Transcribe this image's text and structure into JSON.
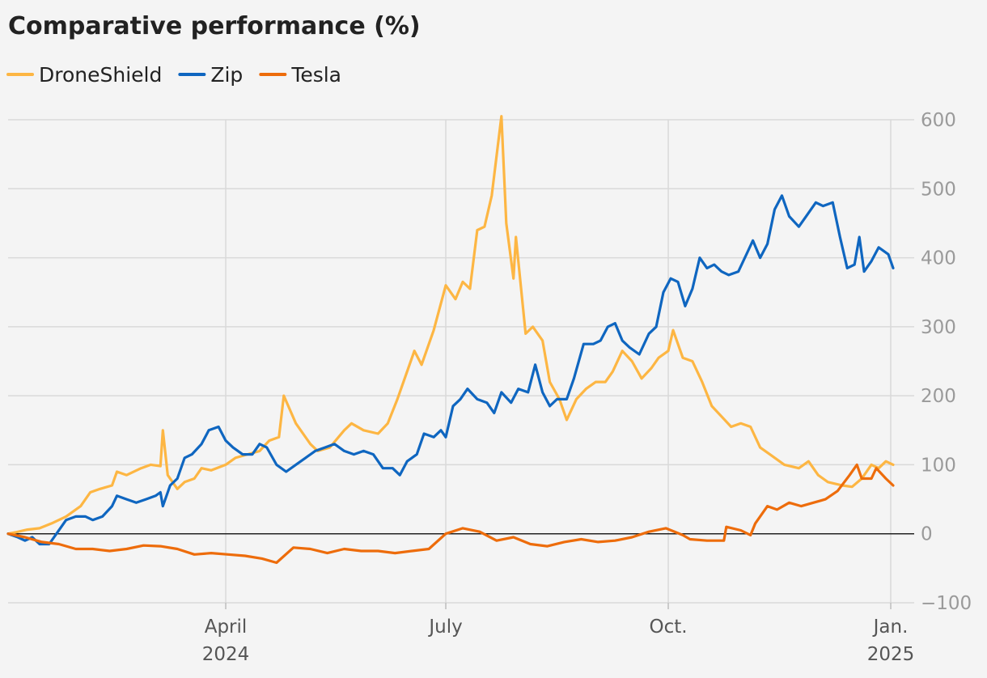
{
  "chart_data": {
    "type": "line",
    "title": "Comparative performance (%)",
    "legend_position": "top-left",
    "grid": true,
    "ylim": [
      -100,
      600
    ],
    "yticks": [
      600,
      500,
      400,
      300,
      200,
      100,
      0,
      -100
    ],
    "ytick_labels": [
      "600",
      "500",
      "400",
      "300",
      "200",
      "100",
      "0",
      "−100"
    ],
    "xlim": [
      "2024-01-02",
      "2025-01-03"
    ],
    "xticks": [
      {
        "date": "2024-04-01",
        "label": "April",
        "sublabel": "2024"
      },
      {
        "date": "2024-07-01",
        "label": "July",
        "sublabel": ""
      },
      {
        "date": "2024-10-01",
        "label": "Oct.",
        "sublabel": ""
      },
      {
        "date": "2025-01-01",
        "label": "Jan.",
        "sublabel": "2025"
      }
    ],
    "series": [
      {
        "name": "DroneShield",
        "color": "#fdb643",
        "points": [
          [
            "2024-01-02",
            0
          ],
          [
            "2024-01-05",
            2
          ],
          [
            "2024-01-10",
            6
          ],
          [
            "2024-01-15",
            8
          ],
          [
            "2024-01-20",
            15
          ],
          [
            "2024-01-26",
            25
          ],
          [
            "2024-02-01",
            40
          ],
          [
            "2024-02-05",
            60
          ],
          [
            "2024-02-09",
            65
          ],
          [
            "2024-02-14",
            70
          ],
          [
            "2024-02-16",
            90
          ],
          [
            "2024-02-20",
            85
          ],
          [
            "2024-02-26",
            95
          ],
          [
            "2024-03-01",
            100
          ],
          [
            "2024-03-05",
            98
          ],
          [
            "2024-03-06",
            150
          ],
          [
            "2024-03-08",
            85
          ],
          [
            "2024-03-12",
            65
          ],
          [
            "2024-03-15",
            75
          ],
          [
            "2024-03-19",
            80
          ],
          [
            "2024-03-22",
            95
          ],
          [
            "2024-03-26",
            92
          ],
          [
            "2024-04-01",
            100
          ],
          [
            "2024-04-05",
            110
          ],
          [
            "2024-04-10",
            115
          ],
          [
            "2024-04-15",
            120
          ],
          [
            "2024-04-19",
            135
          ],
          [
            "2024-04-23",
            140
          ],
          [
            "2024-04-25",
            200
          ],
          [
            "2024-04-30",
            160
          ],
          [
            "2024-05-06",
            130
          ],
          [
            "2024-05-09",
            120
          ],
          [
            "2024-05-14",
            125
          ],
          [
            "2024-05-20",
            150
          ],
          [
            "2024-05-23",
            160
          ],
          [
            "2024-05-28",
            150
          ],
          [
            "2024-06-03",
            145
          ],
          [
            "2024-06-07",
            160
          ],
          [
            "2024-06-11",
            195
          ],
          [
            "2024-06-14",
            225
          ],
          [
            "2024-06-18",
            265
          ],
          [
            "2024-06-21",
            245
          ],
          [
            "2024-06-26",
            295
          ],
          [
            "2024-07-01",
            360
          ],
          [
            "2024-07-05",
            340
          ],
          [
            "2024-07-08",
            365
          ],
          [
            "2024-07-11",
            355
          ],
          [
            "2024-07-14",
            440
          ],
          [
            "2024-07-17",
            445
          ],
          [
            "2024-07-20",
            490
          ],
          [
            "2024-07-24",
            605
          ],
          [
            "2024-07-26",
            450
          ],
          [
            "2024-07-29",
            370
          ],
          [
            "2024-07-30",
            430
          ],
          [
            "2024-08-03",
            290
          ],
          [
            "2024-08-06",
            300
          ],
          [
            "2024-08-10",
            280
          ],
          [
            "2024-08-13",
            220
          ],
          [
            "2024-08-17",
            195
          ],
          [
            "2024-08-20",
            165
          ],
          [
            "2024-08-24",
            195
          ],
          [
            "2024-08-28",
            210
          ],
          [
            "2024-09-01",
            220
          ],
          [
            "2024-09-05",
            220
          ],
          [
            "2024-09-08",
            235
          ],
          [
            "2024-09-12",
            265
          ],
          [
            "2024-09-16",
            250
          ],
          [
            "2024-09-20",
            225
          ],
          [
            "2024-09-24",
            240
          ],
          [
            "2024-09-27",
            255
          ],
          [
            "2024-10-01",
            265
          ],
          [
            "2024-10-03",
            295
          ],
          [
            "2024-10-07",
            255
          ],
          [
            "2024-10-11",
            250
          ],
          [
            "2024-10-15",
            220
          ],
          [
            "2024-10-19",
            185
          ],
          [
            "2024-10-23",
            170
          ],
          [
            "2024-10-27",
            155
          ],
          [
            "2024-10-31",
            160
          ],
          [
            "2024-11-04",
            155
          ],
          [
            "2024-11-08",
            125
          ],
          [
            "2024-11-12",
            115
          ],
          [
            "2024-11-18",
            100
          ],
          [
            "2024-11-24",
            95
          ],
          [
            "2024-11-28",
            105
          ],
          [
            "2024-12-02",
            85
          ],
          [
            "2024-12-06",
            75
          ],
          [
            "2024-12-12",
            70
          ],
          [
            "2024-12-16",
            68
          ],
          [
            "2024-12-20",
            80
          ],
          [
            "2024-12-24",
            100
          ],
          [
            "2024-12-27",
            95
          ],
          [
            "2024-12-30",
            105
          ],
          [
            "2025-01-02",
            100
          ]
        ]
      },
      {
        "name": "Zip",
        "color": "#0f66c0",
        "points": [
          [
            "2024-01-02",
            0
          ],
          [
            "2024-01-06",
            -5
          ],
          [
            "2024-01-09",
            -10
          ],
          [
            "2024-01-12",
            -5
          ],
          [
            "2024-01-15",
            -15
          ],
          [
            "2024-01-19",
            -15
          ],
          [
            "2024-01-22",
            0
          ],
          [
            "2024-01-26",
            20
          ],
          [
            "2024-01-30",
            25
          ],
          [
            "2024-02-03",
            25
          ],
          [
            "2024-02-06",
            20
          ],
          [
            "2024-02-10",
            25
          ],
          [
            "2024-02-14",
            40
          ],
          [
            "2024-02-16",
            55
          ],
          [
            "2024-02-20",
            50
          ],
          [
            "2024-02-24",
            45
          ],
          [
            "2024-02-28",
            50
          ],
          [
            "2024-03-03",
            55
          ],
          [
            "2024-03-05",
            60
          ],
          [
            "2024-03-06",
            40
          ],
          [
            "2024-03-09",
            70
          ],
          [
            "2024-03-12",
            80
          ],
          [
            "2024-03-15",
            110
          ],
          [
            "2024-03-18",
            115
          ],
          [
            "2024-03-22",
            130
          ],
          [
            "2024-03-25",
            150
          ],
          [
            "2024-03-29",
            155
          ],
          [
            "2024-04-01",
            135
          ],
          [
            "2024-04-04",
            125
          ],
          [
            "2024-04-08",
            115
          ],
          [
            "2024-04-12",
            115
          ],
          [
            "2024-04-15",
            130
          ],
          [
            "2024-04-18",
            125
          ],
          [
            "2024-04-22",
            100
          ],
          [
            "2024-04-26",
            90
          ],
          [
            "2024-04-30",
            100
          ],
          [
            "2024-05-04",
            110
          ],
          [
            "2024-05-08",
            120
          ],
          [
            "2024-05-12",
            125
          ],
          [
            "2024-05-16",
            130
          ],
          [
            "2024-05-20",
            120
          ],
          [
            "2024-05-24",
            115
          ],
          [
            "2024-05-28",
            120
          ],
          [
            "2024-06-01",
            115
          ],
          [
            "2024-06-05",
            95
          ],
          [
            "2024-06-09",
            95
          ],
          [
            "2024-06-12",
            85
          ],
          [
            "2024-06-15",
            105
          ],
          [
            "2024-06-19",
            115
          ],
          [
            "2024-06-22",
            145
          ],
          [
            "2024-06-26",
            140
          ],
          [
            "2024-06-29",
            150
          ],
          [
            "2024-07-01",
            140
          ],
          [
            "2024-07-04",
            185
          ],
          [
            "2024-07-07",
            195
          ],
          [
            "2024-07-10",
            210
          ],
          [
            "2024-07-14",
            195
          ],
          [
            "2024-07-18",
            190
          ],
          [
            "2024-07-21",
            175
          ],
          [
            "2024-07-24",
            205
          ],
          [
            "2024-07-28",
            190
          ],
          [
            "2024-07-31",
            210
          ],
          [
            "2024-08-04",
            205
          ],
          [
            "2024-08-07",
            245
          ],
          [
            "2024-08-10",
            205
          ],
          [
            "2024-08-13",
            185
          ],
          [
            "2024-08-16",
            195
          ],
          [
            "2024-08-20",
            195
          ],
          [
            "2024-08-23",
            225
          ],
          [
            "2024-08-27",
            275
          ],
          [
            "2024-08-31",
            275
          ],
          [
            "2024-09-03",
            280
          ],
          [
            "2024-09-06",
            300
          ],
          [
            "2024-09-09",
            305
          ],
          [
            "2024-09-12",
            280
          ],
          [
            "2024-09-15",
            270
          ],
          [
            "2024-09-19",
            260
          ],
          [
            "2024-09-23",
            290
          ],
          [
            "2024-09-26",
            300
          ],
          [
            "2024-09-29",
            350
          ],
          [
            "2024-10-02",
            370
          ],
          [
            "2024-10-05",
            365
          ],
          [
            "2024-10-08",
            330
          ],
          [
            "2024-10-11",
            355
          ],
          [
            "2024-10-14",
            400
          ],
          [
            "2024-10-17",
            385
          ],
          [
            "2024-10-20",
            390
          ],
          [
            "2024-10-23",
            380
          ],
          [
            "2024-10-26",
            375
          ],
          [
            "2024-10-30",
            380
          ],
          [
            "2024-11-03",
            410
          ],
          [
            "2024-11-05",
            425
          ],
          [
            "2024-11-08",
            400
          ],
          [
            "2024-11-11",
            420
          ],
          [
            "2024-11-14",
            470
          ],
          [
            "2024-11-17",
            490
          ],
          [
            "2024-11-20",
            460
          ],
          [
            "2024-11-24",
            445
          ],
          [
            "2024-11-27",
            460
          ],
          [
            "2024-12-01",
            480
          ],
          [
            "2024-12-04",
            475
          ],
          [
            "2024-12-08",
            480
          ],
          [
            "2024-12-11",
            430
          ],
          [
            "2024-12-14",
            385
          ],
          [
            "2024-12-17",
            390
          ],
          [
            "2024-12-19",
            430
          ],
          [
            "2024-12-21",
            380
          ],
          [
            "2024-12-24",
            395
          ],
          [
            "2024-12-27",
            415
          ],
          [
            "2024-12-31",
            405
          ],
          [
            "2025-01-02",
            385
          ]
        ]
      },
      {
        "name": "Tesla",
        "color": "#ed6c0b",
        "points": [
          [
            "2024-01-02",
            0
          ],
          [
            "2024-01-09",
            -5
          ],
          [
            "2024-01-16",
            -12
          ],
          [
            "2024-01-23",
            -15
          ],
          [
            "2024-01-30",
            -22
          ],
          [
            "2024-02-06",
            -22
          ],
          [
            "2024-02-13",
            -25
          ],
          [
            "2024-02-20",
            -22
          ],
          [
            "2024-02-27",
            -17
          ],
          [
            "2024-03-05",
            -18
          ],
          [
            "2024-03-12",
            -22
          ],
          [
            "2024-03-19",
            -30
          ],
          [
            "2024-03-26",
            -28
          ],
          [
            "2024-04-02",
            -30
          ],
          [
            "2024-04-09",
            -32
          ],
          [
            "2024-04-16",
            -36
          ],
          [
            "2024-04-22",
            -42
          ],
          [
            "2024-04-29",
            -20
          ],
          [
            "2024-05-06",
            -22
          ],
          [
            "2024-05-13",
            -28
          ],
          [
            "2024-05-20",
            -22
          ],
          [
            "2024-05-27",
            -25
          ],
          [
            "2024-06-03",
            -25
          ],
          [
            "2024-06-10",
            -28
          ],
          [
            "2024-06-17",
            -25
          ],
          [
            "2024-06-24",
            -22
          ],
          [
            "2024-07-01",
            0
          ],
          [
            "2024-07-08",
            8
          ],
          [
            "2024-07-15",
            3
          ],
          [
            "2024-07-22",
            -10
          ],
          [
            "2024-07-29",
            -5
          ],
          [
            "2024-08-05",
            -15
          ],
          [
            "2024-08-12",
            -18
          ],
          [
            "2024-08-19",
            -12
          ],
          [
            "2024-08-26",
            -8
          ],
          [
            "2024-09-02",
            -12
          ],
          [
            "2024-09-09",
            -10
          ],
          [
            "2024-09-16",
            -5
          ],
          [
            "2024-09-23",
            3
          ],
          [
            "2024-09-30",
            8
          ],
          [
            "2024-10-07",
            -2
          ],
          [
            "2024-10-10",
            -8
          ],
          [
            "2024-10-17",
            -10
          ],
          [
            "2024-10-24",
            -10
          ],
          [
            "2024-10-25",
            10
          ],
          [
            "2024-10-31",
            5
          ],
          [
            "2024-11-04",
            -2
          ],
          [
            "2024-11-06",
            15
          ],
          [
            "2024-11-11",
            40
          ],
          [
            "2024-11-15",
            35
          ],
          [
            "2024-11-20",
            45
          ],
          [
            "2024-11-25",
            40
          ],
          [
            "2024-11-30",
            45
          ],
          [
            "2024-12-05",
            50
          ],
          [
            "2024-12-10",
            62
          ],
          [
            "2024-12-15",
            85
          ],
          [
            "2024-12-18",
            100
          ],
          [
            "2024-12-20",
            80
          ],
          [
            "2024-12-24",
            80
          ],
          [
            "2024-12-26",
            95
          ],
          [
            "2024-12-30",
            80
          ],
          [
            "2025-01-02",
            70
          ]
        ]
      }
    ]
  }
}
